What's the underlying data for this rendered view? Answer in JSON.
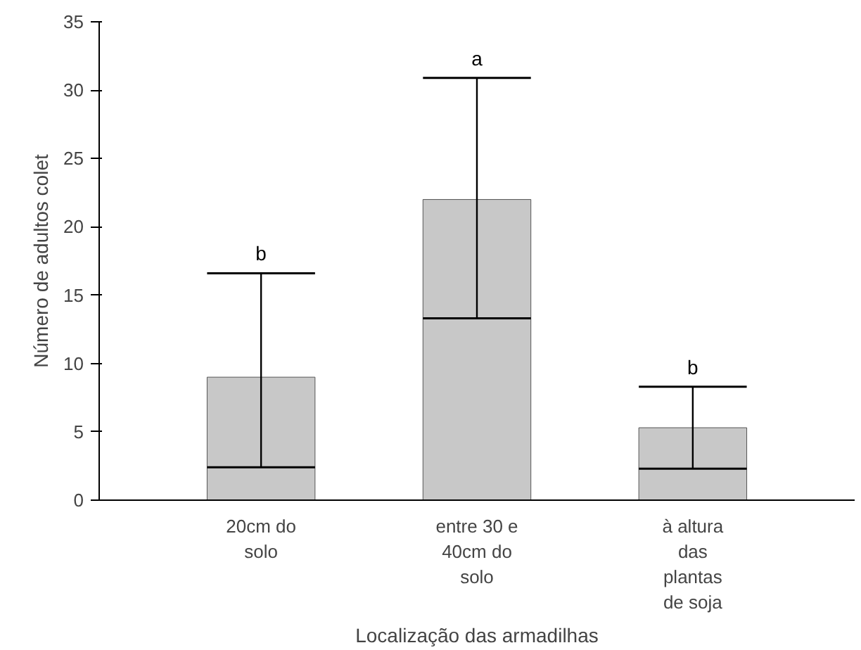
{
  "chart_data": {
    "type": "box",
    "categories": [
      "20cm do\nsolo",
      "entre 30 e\n40cm do\nsolo",
      "à altura\ndas\nplantas\nde soja"
    ],
    "boxes": [
      {
        "q1": 0,
        "median": 2.4,
        "q3": 9,
        "high": 16.6
      },
      {
        "q1": 0,
        "median": 13.3,
        "q3": 22,
        "high": 30.9
      },
      {
        "q1": 0,
        "median": 2.3,
        "q3": 5.3,
        "high": 8.3
      }
    ],
    "color": "#c8c8c8",
    "xlabel": "Localização das armadilhas",
    "ylabel": "Número de adultos colet",
    "ylim": [
      0,
      35
    ],
    "yticks": [
      0,
      5,
      10,
      15,
      20,
      25,
      30,
      35
    ],
    "annotations": [
      {
        "text": "b",
        "x": "20cm do\nsolo",
        "y": 16.6
      },
      {
        "text": "a",
        "x": "entre 30 e\n40cm do\nsolo",
        "y": 30.9
      },
      {
        "text": "b",
        "x": "à altura\ndas\nplantas\nde soja",
        "y": 8.3
      }
    ],
    "grid": false
  }
}
